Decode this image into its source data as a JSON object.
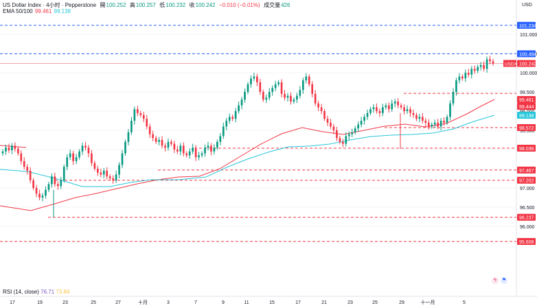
{
  "header": {
    "symbol": "US Dollar Index · 4小时 · Pepperstone",
    "open_label": "開",
    "open": "100.252",
    "high_label": "高",
    "high": "100.257",
    "low_label": "低",
    "low": "100.232",
    "close_label": "收",
    "close": "100.242",
    "change": "−0.010 (−0.01%)",
    "volume_label": "成交量",
    "volume": "426"
  },
  "ema": {
    "label": "EMA 50/100",
    "v1": "99.461",
    "v2": "99.138"
  },
  "rsi": {
    "label": "RSI (14, close)",
    "v1": "76.71",
    "v2": "73.84"
  },
  "price_axis": {
    "currency": "USD",
    "ticks": [
      "101.000",
      "100.500",
      "100.000",
      "99.500",
      "99.000",
      "98.500",
      "98.000",
      "97.500",
      "97.000",
      "96.500",
      "96.000"
    ]
  },
  "price_tags": [
    {
      "value": "101.234",
      "style": "blue"
    },
    {
      "value": "100.494",
      "style": "blue"
    },
    {
      "value": "100.242",
      "style": "red",
      "prefix": "USDX"
    },
    {
      "value": "99.461",
      "style": "red"
    },
    {
      "value": "99.444",
      "style": "red"
    },
    {
      "value": "99.138",
      "style": "cyan"
    },
    {
      "value": "98.572",
      "style": "red"
    },
    {
      "value": "98.036",
      "style": "red"
    },
    {
      "value": "97.467",
      "style": "red"
    },
    {
      "value": "97.202",
      "style": "red"
    },
    {
      "value": "96.237",
      "style": "red"
    },
    {
      "value": "95.608",
      "style": "red"
    }
  ],
  "time_axis": [
    "17",
    "19",
    "23",
    "25",
    "27",
    "十月",
    "3",
    "7",
    "9",
    "11",
    "15",
    "17",
    "21",
    "23",
    "25",
    "29",
    "十一月",
    "5"
  ],
  "colors": {
    "up": "#089981",
    "down": "#f23645",
    "ema_fast": "#f23645",
    "ema_slow": "#26c6da",
    "blue_level": "#2962ff",
    "red_level": "#f23645"
  }
}
